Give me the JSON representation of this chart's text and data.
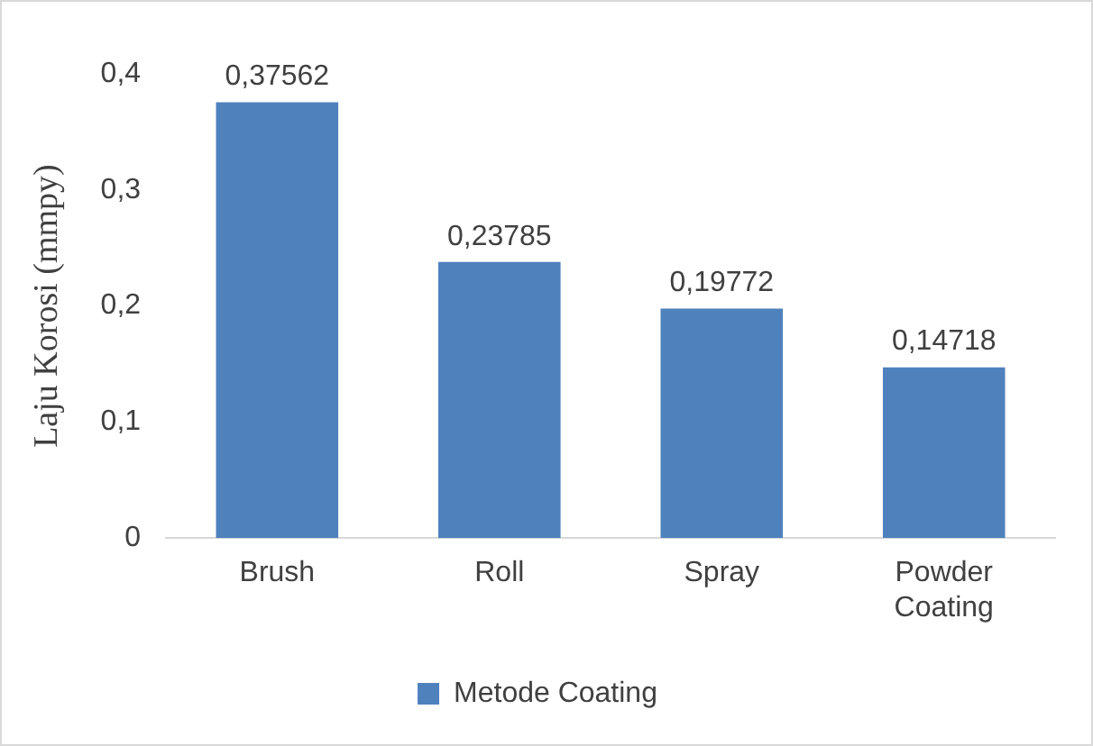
{
  "chart_data": {
    "type": "bar",
    "ylabel": "Laju Korosi (mmpy)",
    "categories": [
      "Brush",
      "Roll",
      "Spray",
      "Powder Coating"
    ],
    "series": [
      {
        "name": "Metode Coating",
        "color": "#4f81bd",
        "values": [
          0.37562,
          0.23785,
          0.19772,
          0.14718
        ],
        "value_labels": [
          "0,37562",
          "0,23785",
          "0,19772",
          "0,14718"
        ]
      }
    ],
    "ylim": [
      0,
      0.4
    ],
    "yticks": [
      {
        "value": 0,
        "label": "0"
      },
      {
        "value": 0.1,
        "label": "0,1"
      },
      {
        "value": 0.2,
        "label": "0,2"
      },
      {
        "value": 0.3,
        "label": "0,3"
      },
      {
        "value": 0.4,
        "label": "0,4"
      }
    ],
    "grid": false,
    "legend": "bottom"
  }
}
